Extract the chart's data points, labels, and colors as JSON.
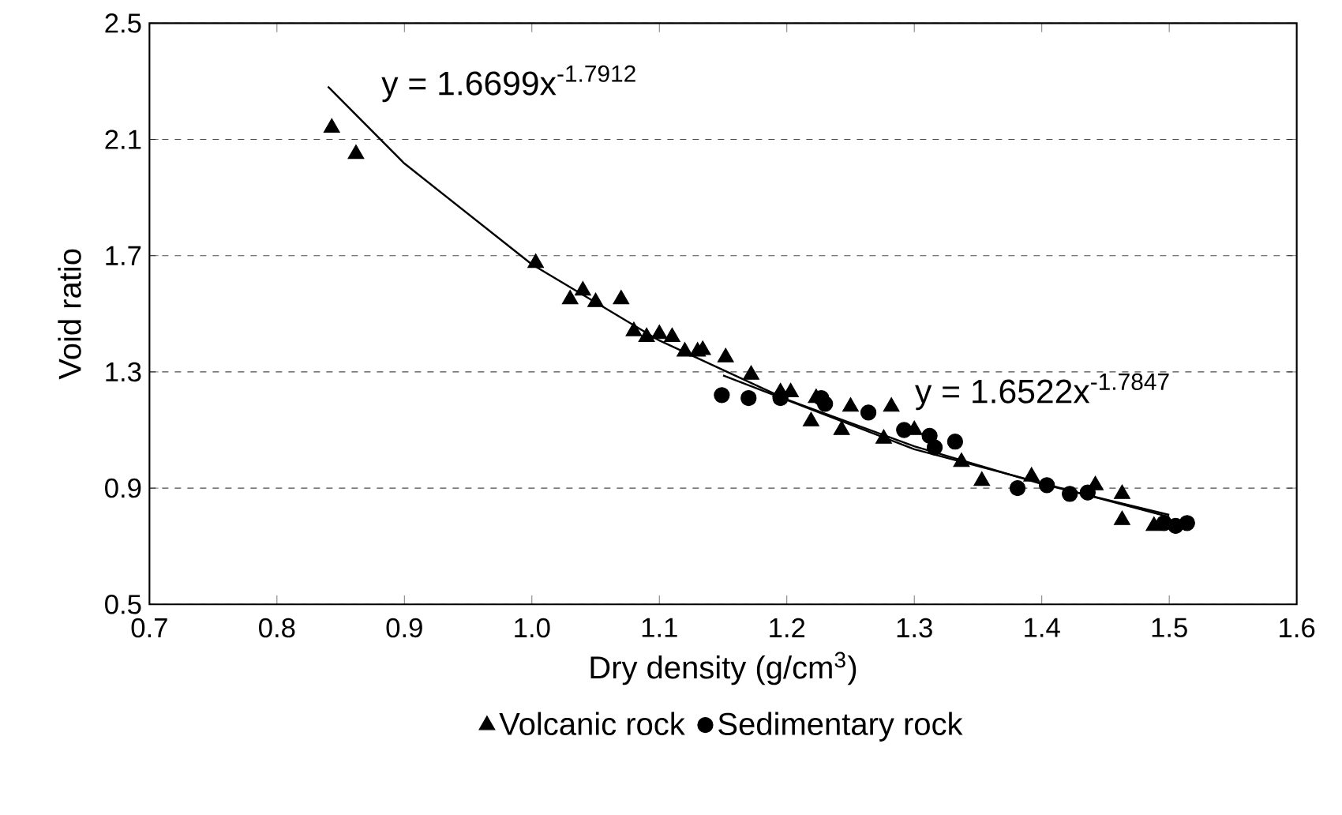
{
  "chart_data": {
    "type": "scatter",
    "xlabel": "Dry density (g/cm$^{3}$)",
    "ylabel": "Void ratio",
    "xlim": [
      0.7,
      1.6
    ],
    "xticks": [
      {
        "value": 0.7,
        "label": "0.7"
      },
      {
        "value": 0.8,
        "label": "0.8"
      },
      {
        "value": 0.9,
        "label": "0.9"
      },
      {
        "value": 1.0,
        "label": "1.0"
      },
      {
        "value": 1.1,
        "label": "1.1"
      },
      {
        "value": 1.2,
        "label": "1.2"
      },
      {
        "value": 1.3,
        "label": "1.3"
      },
      {
        "value": 1.4,
        "label": "1.4"
      },
      {
        "value": 1.5,
        "label": "1.5"
      },
      {
        "value": 1.6,
        "label": "1.6"
      }
    ],
    "ylim": [
      0.5,
      2.5
    ],
    "yticks": [
      0.5,
      0.9,
      1.3,
      1.7,
      2.1,
      2.5
    ],
    "grid": "y",
    "legend": "bottom",
    "series": [
      {
        "name": "Volcanic rock",
        "marker": "triangle",
        "color": "#000000",
        "x": [
          0.843,
          0.862,
          1.003,
          1.03,
          1.04,
          1.05,
          1.07,
          1.08,
          1.09,
          1.1,
          1.11,
          1.12,
          1.13,
          1.134,
          1.152,
          1.172,
          1.195,
          1.203,
          1.223,
          1.219,
          1.243,
          1.25,
          1.282,
          1.276,
          1.3,
          1.337,
          1.353,
          1.392,
          1.442,
          1.463,
          1.463,
          1.488
        ],
        "values": [
          2.14,
          2.05,
          1.675,
          1.55,
          1.58,
          1.54,
          1.55,
          1.44,
          1.42,
          1.43,
          1.42,
          1.37,
          1.37,
          1.375,
          1.35,
          1.29,
          1.23,
          1.23,
          1.21,
          1.13,
          1.1,
          1.18,
          1.18,
          1.07,
          1.1,
          0.99,
          0.925,
          0.94,
          0.91,
          0.88,
          0.79,
          0.77
        ]
      },
      {
        "name": "Sedimentary rock",
        "marker": "circle",
        "color": "#000000",
        "x": [
          1.149,
          1.17,
          1.195,
          1.227,
          1.23,
          1.264,
          1.292,
          1.312,
          1.332,
          1.316,
          1.381,
          1.404,
          1.422,
          1.436,
          1.496,
          1.505,
          1.514
        ],
        "values": [
          1.22,
          1.21,
          1.21,
          1.21,
          1.19,
          1.16,
          1.1,
          1.08,
          1.06,
          1.04,
          0.9,
          0.91,
          0.88,
          0.885,
          0.78,
          0.77,
          0.78
        ]
      },
      {
        "type": "line",
        "marker": "none",
        "color": "#000000",
        "x": [
          0.84,
          0.9,
          1.0,
          1.1,
          1.2,
          1.3,
          1.4,
          1.5
        ],
        "values": [
          2.282,
          2.017,
          1.67,
          1.408,
          1.205,
          1.044,
          0.914,
          0.808
        ]
      },
      {
        "type": "line",
        "marker": "none",
        "color": "#000000",
        "x": [
          1.15,
          1.3,
          1.5
        ],
        "values": [
          1.288,
          1.034,
          0.801
        ]
      }
    ],
    "annotations": [
      "y = 1.6699x$^{-1.7912}$",
      "y = 1.6522x$^{-1.7847}$"
    ]
  }
}
